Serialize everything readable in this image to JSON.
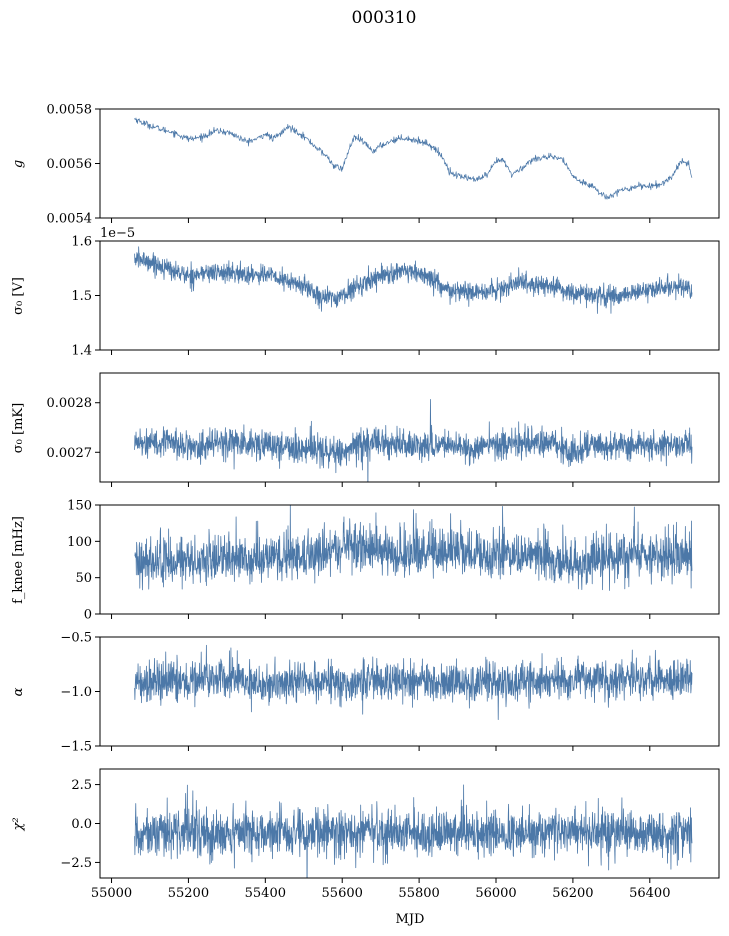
{
  "figure": {
    "suptitle": "000310",
    "line_color": "#4c78a8"
  },
  "chart_data": [
    {
      "type": "line",
      "ylabel": "g",
      "ylim": [
        0.0054,
        0.0058
      ],
      "yticks": [
        0.0054,
        0.0056,
        0.0058
      ],
      "yticklabels": [
        "0.0054",
        "0.0056",
        "0.0058"
      ],
      "xlim": [
        54970,
        56580
      ],
      "noise": 6e-06,
      "linewidth": 0.7,
      "series": [
        {
          "x": [
            55060,
            55080,
            55100,
            55130,
            55160,
            55190,
            55210,
            55240,
            55270,
            55300,
            55320,
            55350,
            55380,
            55400,
            55420,
            55440,
            55460,
            55480,
            55500,
            55520,
            55540,
            55560,
            55580,
            55600,
            55615,
            55630,
            55650,
            55680,
            55700,
            55730,
            55760,
            55790,
            55820,
            55840,
            55860,
            55880,
            55900,
            55920,
            55950,
            55980,
            56000,
            56020,
            56040,
            56060,
            56090,
            56120,
            56150,
            56170,
            56190,
            56210,
            56230,
            56250,
            56270,
            56290,
            56310,
            56340,
            56370,
            56400,
            56430,
            56460,
            56480,
            56500,
            56510
          ],
          "y": [
            0.005765,
            0.00575,
            0.00574,
            0.005725,
            0.005715,
            0.005695,
            0.00569,
            0.0057,
            0.00572,
            0.005715,
            0.005705,
            0.00568,
            0.00569,
            0.00571,
            0.00569,
            0.00571,
            0.005735,
            0.00572,
            0.0057,
            0.005675,
            0.00565,
            0.005625,
            0.00559,
            0.00558,
            0.00564,
            0.005695,
            0.005685,
            0.005645,
            0.005665,
            0.005685,
            0.005695,
            0.005685,
            0.005675,
            0.005655,
            0.005625,
            0.00557,
            0.005555,
            0.00555,
            0.00554,
            0.00556,
            0.00561,
            0.00561,
            0.00556,
            0.005575,
            0.00561,
            0.005625,
            0.00562,
            0.00562,
            0.005575,
            0.00554,
            0.00553,
            0.00552,
            0.00549,
            0.005475,
            0.005495,
            0.005505,
            0.00552,
            0.005515,
            0.005525,
            0.005555,
            0.00561,
            0.0056,
            0.00555
          ]
        }
      ]
    },
    {
      "type": "line",
      "ylabel": "σ₀ [V]",
      "offset_text": "1e−5",
      "ylim": [
        1.4,
        1.6
      ],
      "yticks": [
        1.4,
        1.5,
        1.6
      ],
      "yticklabels": [
        "1.4",
        "1.5",
        "1.6"
      ],
      "xlim": [
        54970,
        56580
      ],
      "noise": 0.009,
      "linewidth": 0.8,
      "series": [
        {
          "x": [
            55060,
            55100,
            55150,
            55200,
            55250,
            55300,
            55350,
            55400,
            55450,
            55500,
            55540,
            55560,
            55600,
            55620,
            55650,
            55700,
            55750,
            55800,
            55830,
            55850,
            55880,
            55900,
            55950,
            56000,
            56030,
            56060,
            56100,
            56150,
            56200,
            56250,
            56270,
            56290,
            56300,
            56350,
            56400,
            56450,
            56510
          ],
          "y": [
            1.568,
            1.562,
            1.548,
            1.536,
            1.542,
            1.542,
            1.538,
            1.54,
            1.527,
            1.518,
            1.5,
            1.495,
            1.498,
            1.51,
            1.52,
            1.538,
            1.542,
            1.54,
            1.532,
            1.52,
            1.505,
            1.508,
            1.505,
            1.508,
            1.518,
            1.525,
            1.52,
            1.515,
            1.505,
            1.5,
            1.5,
            1.495,
            1.497,
            1.505,
            1.508,
            1.518,
            1.512
          ]
        }
      ]
    },
    {
      "type": "line",
      "ylabel": "σ₀ [mK]",
      "ylim": [
        0.00264,
        0.00286
      ],
      "yticks": [
        0.0027,
        0.0028
      ],
      "yticklabels": [
        "0.0027",
        "0.0028"
      ],
      "xlim": [
        54970,
        56580
      ],
      "noise": 1.5e-05,
      "linewidth": 0.8,
      "series": [
        {
          "x": [
            55060,
            55150,
            55220,
            55300,
            55400,
            55500,
            55550,
            55600,
            55650,
            55700,
            55800,
            55900,
            55950,
            56000,
            56100,
            56150,
            56200,
            56250,
            56300,
            56400,
            56510
          ],
          "y": [
            0.002722,
            0.002718,
            0.002712,
            0.00272,
            0.002715,
            0.002705,
            0.002702,
            0.002698,
            0.002716,
            0.002718,
            0.002716,
            0.002712,
            0.002706,
            0.002716,
            0.00272,
            0.002714,
            0.002704,
            0.002716,
            0.00271,
            0.002714,
            0.002713
          ]
        }
      ]
    },
    {
      "type": "line",
      "ylabel": "f_knee [mHz]",
      "ylim": [
        0,
        150
      ],
      "yticks": [
        0,
        50,
        100,
        150
      ],
      "yticklabels": [
        "0",
        "50",
        "100",
        "150"
      ],
      "xlim": [
        54970,
        56580
      ],
      "noise": 15,
      "linewidth": 0.8,
      "series": [
        {
          "x": [
            55060,
            55200,
            55350,
            55450,
            55550,
            55600,
            55650,
            55700,
            55800,
            55900,
            55950,
            56000,
            56100,
            56150,
            56200,
            56250,
            56300,
            56400,
            56510
          ],
          "y": [
            70,
            70,
            72,
            76,
            82,
            90,
            88,
            85,
            84,
            82,
            80,
            80,
            80,
            70,
            65,
            68,
            80,
            80,
            78
          ]
        }
      ]
    },
    {
      "type": "line",
      "ylabel": "α",
      "ylim": [
        -1.5,
        -0.5
      ],
      "yticks": [
        -1.5,
        -1.0,
        -0.5
      ],
      "yticklabels": [
        "−1.5",
        "−1.0",
        "−0.5"
      ],
      "xlim": [
        54970,
        56580
      ],
      "noise": 0.09,
      "linewidth": 0.8,
      "series": [
        {
          "x": [
            55060,
            55200,
            55300,
            55400,
            55500,
            55600,
            55700,
            55800,
            55900,
            56000,
            56100,
            56200,
            56300,
            56400,
            56510
          ],
          "y": [
            -0.9,
            -0.9,
            -0.88,
            -0.92,
            -0.9,
            -0.92,
            -0.9,
            -0.92,
            -0.92,
            -0.9,
            -0.92,
            -0.88,
            -0.9,
            -0.9,
            -0.9
          ]
        }
      ]
    },
    {
      "type": "line",
      "ylabel": "χ²",
      "ylim": [
        -3.5,
        3.5
      ],
      "yticks": [
        -2.5,
        0.0,
        2.5
      ],
      "yticklabels": [
        "−2.5",
        "0.0",
        "2.5"
      ],
      "xlim": [
        54970,
        56580
      ],
      "xlabel": "MJD",
      "xticks": [
        55000,
        55200,
        55400,
        55600,
        55800,
        56000,
        56200,
        56400
      ],
      "xticklabels": [
        "55000",
        "55200",
        "55400",
        "55600",
        "55800",
        "56000",
        "56200",
        "56400"
      ],
      "noise": 0.75,
      "linewidth": 0.8,
      "series": [
        {
          "x": [
            55060,
            56510
          ],
          "y": [
            -0.6,
            -0.6
          ]
        }
      ]
    }
  ]
}
